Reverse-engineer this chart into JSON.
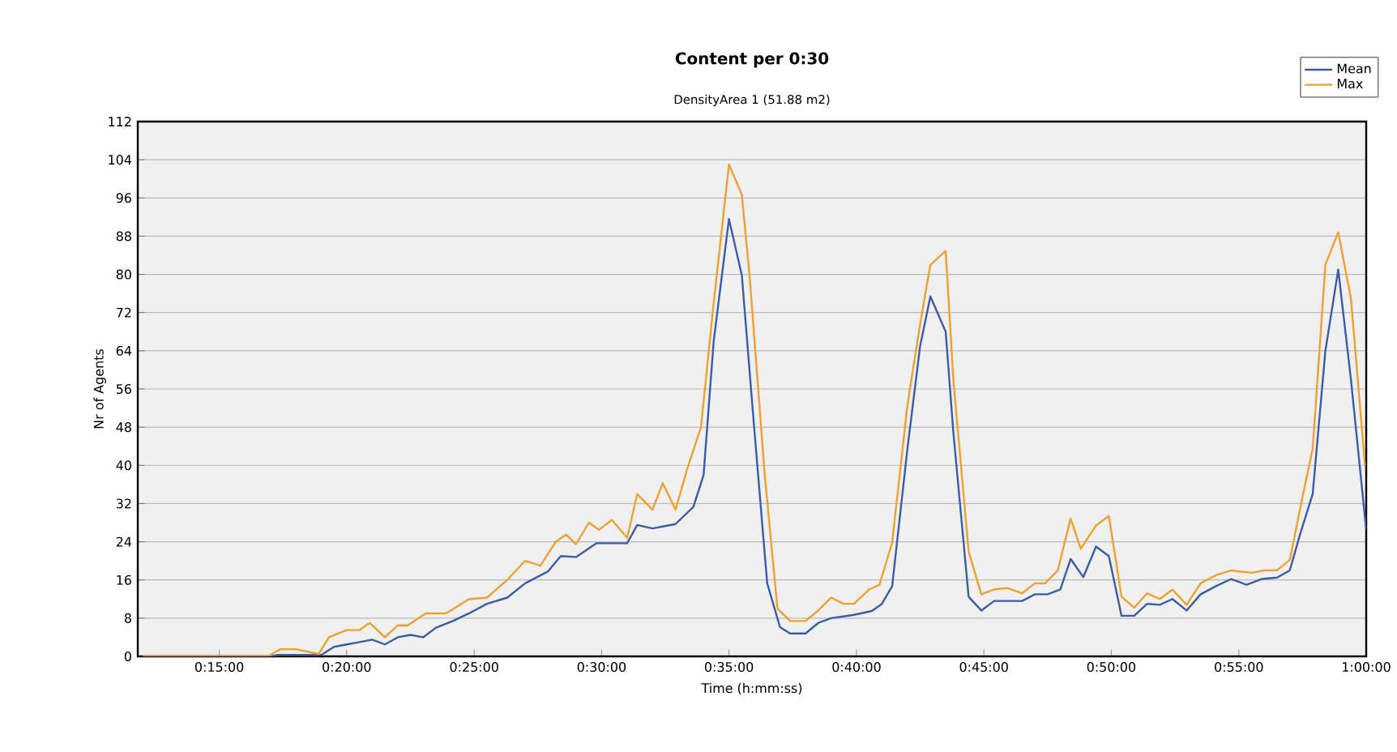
{
  "chart_data": {
    "type": "line",
    "title": "Content per 0:30",
    "subtitle": "DensityArea 1 (51.88 m2)",
    "xlabel": "Time (h:mm:ss)",
    "ylabel": "Nr of Agents",
    "xlim": [
      0.1967,
      1.0
    ],
    "xticks": [
      {
        "value": 0.25,
        "label": "0:15:00"
      },
      {
        "value": 0.3333,
        "label": "0:20:00"
      },
      {
        "value": 0.4167,
        "label": "0:25:00"
      },
      {
        "value": 0.5,
        "label": "0:30:00"
      },
      {
        "value": 0.5833,
        "label": "0:35:00"
      },
      {
        "value": 0.6667,
        "label": "0:40:00"
      },
      {
        "value": 0.75,
        "label": "0:45:00"
      },
      {
        "value": 0.8333,
        "label": "0:50:00"
      },
      {
        "value": 0.9167,
        "label": "0:55:00"
      },
      {
        "value": 1.0,
        "label": "1:00:00"
      }
    ],
    "ylim": [
      0,
      112
    ],
    "yticks": [
      0,
      8,
      16,
      24,
      32,
      40,
      48,
      56,
      64,
      72,
      80,
      88,
      96,
      104,
      112
    ],
    "grid": "y",
    "legend": "top right",
    "line_style": "solid",
    "marker": "none",
    "series": [
      {
        "name": "Mean",
        "color": "#3b5ca8",
        "x": [
          0.2,
          0.2833,
          0.2883,
          0.3167,
          0.325,
          0.3333,
          0.3417,
          0.35,
          0.3583,
          0.3667,
          0.375,
          0.3833,
          0.3917,
          0.4033,
          0.4133,
          0.425,
          0.4383,
          0.45,
          0.465,
          0.4733,
          0.4833,
          0.4967,
          0.5167,
          0.5233,
          0.5333,
          0.5483,
          0.56,
          0.5667,
          0.5733,
          0.5833,
          0.5917,
          0.6,
          0.6083,
          0.6167,
          0.6233,
          0.6333,
          0.6417,
          0.65,
          0.665,
          0.6767,
          0.6833,
          0.69,
          0.7,
          0.7083,
          0.715,
          0.725,
          0.73,
          0.74,
          0.7483,
          0.7567,
          0.775,
          0.7833,
          0.7917,
          0.8,
          0.8067,
          0.815,
          0.8233,
          0.8317,
          0.84,
          0.8483,
          0.8567,
          0.865,
          0.8733,
          0.8825,
          0.8917,
          0.9017,
          0.9117,
          0.9217,
          0.9317,
          0.9417,
          0.95,
          0.9567,
          0.965,
          0.9733,
          0.9817,
          0.99,
          1.0
        ],
        "values": [
          0,
          0,
          0.3,
          0.3,
          2,
          2.5,
          3,
          3.5,
          2.5,
          4,
          4.5,
          4,
          6,
          7.5,
          9,
          11,
          12.3,
          15.3,
          17.8,
          21,
          20.8,
          23.7,
          23.7,
          27.5,
          26.8,
          27.7,
          31.3,
          38,
          66,
          91.6,
          79.8,
          47,
          15.3,
          6.1,
          4.8,
          4.8,
          7,
          8,
          8.7,
          9.5,
          11,
          14.7,
          43.5,
          65,
          75.4,
          68,
          47,
          12.5,
          9.6,
          11.6,
          11.6,
          13,
          13,
          14,
          20.4,
          16.6,
          23,
          21,
          8.5,
          8.5,
          11,
          10.8,
          12,
          9.6,
          13,
          14.7,
          16.2,
          15,
          16.2,
          16.5,
          18,
          25.5,
          34,
          64,
          81,
          58,
          26.5
        ]
      },
      {
        "name": "Max",
        "color": "#f0a030",
        "x": [
          0.2,
          0.2817,
          0.29,
          0.3,
          0.315,
          0.3217,
          0.3333,
          0.3417,
          0.3483,
          0.3583,
          0.3667,
          0.3733,
          0.385,
          0.3983,
          0.4133,
          0.425,
          0.4383,
          0.45,
          0.46,
          0.47,
          0.4767,
          0.4833,
          0.4917,
          0.4983,
          0.5067,
          0.5167,
          0.5233,
          0.5333,
          0.54,
          0.5483,
          0.5567,
          0.565,
          0.5733,
          0.5833,
          0.5917,
          0.5967,
          0.6067,
          0.615,
          0.6233,
          0.6333,
          0.6417,
          0.65,
          0.6583,
          0.665,
          0.675,
          0.6817,
          0.69,
          0.7,
          0.7083,
          0.715,
          0.725,
          0.73,
          0.74,
          0.7483,
          0.7567,
          0.765,
          0.775,
          0.7833,
          0.79,
          0.7983,
          0.8067,
          0.8133,
          0.8233,
          0.8317,
          0.84,
          0.8483,
          0.8567,
          0.865,
          0.8733,
          0.8825,
          0.8917,
          0.9017,
          0.9117,
          0.925,
          0.9333,
          0.9417,
          0.95,
          0.9583,
          0.965,
          0.9733,
          0.9817,
          0.99,
          0.9992
        ],
        "values": [
          0,
          0,
          1.5,
          1.5,
          0.5,
          4,
          5.5,
          5.5,
          7,
          4,
          6.5,
          6.5,
          9,
          9,
          12,
          12.3,
          16,
          20,
          19,
          24,
          25.5,
          23.5,
          28,
          26.5,
          28.6,
          24.8,
          34,
          30.7,
          36.3,
          30.7,
          40,
          48,
          74,
          103,
          96.7,
          80,
          38,
          10,
          7.4,
          7.4,
          9.6,
          12.3,
          11,
          11,
          14,
          15,
          23.8,
          52.6,
          69.6,
          82,
          84.9,
          58,
          22,
          13,
          14,
          14.3,
          13.2,
          15.3,
          15.3,
          18,
          28.9,
          22.5,
          27.4,
          29.4,
          12.5,
          10.2,
          13.2,
          12,
          14,
          10.8,
          15.3,
          17,
          18,
          17.5,
          18,
          18,
          20.2,
          33.3,
          43.5,
          82,
          88.8,
          75,
          40
        ]
      }
    ]
  }
}
